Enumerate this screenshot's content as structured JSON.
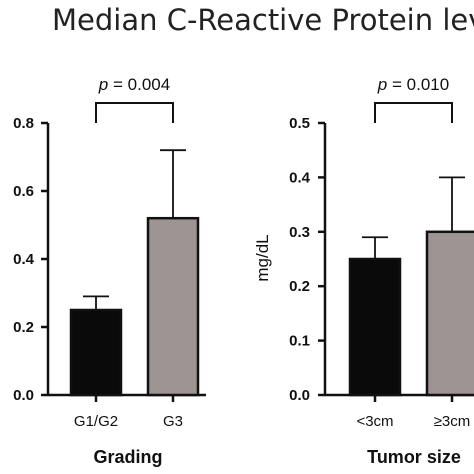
{
  "title": "Median C-Reactive Protein leve",
  "colors": {
    "bar_dark": "#0a0a0a",
    "bar_grey": "#9c9593",
    "stroke": "#111111"
  },
  "chart_data": [
    {
      "type": "bar",
      "categories": [
        "G1/G2",
        "G3"
      ],
      "values": [
        0.25,
        0.52
      ],
      "error_upper": [
        0.29,
        0.72
      ],
      "xlabel": "Grading",
      "ylabel": "",
      "ylim": [
        0,
        0.8
      ],
      "yticks": [
        "0.0",
        "0.2",
        "0.4",
        "0.6",
        "0.8"
      ],
      "annotation": "p = 0.004",
      "bar_colors": [
        "#0a0a0a",
        "#9c9593"
      ]
    },
    {
      "type": "bar",
      "categories": [
        "<3cm",
        "≥3cm"
      ],
      "values": [
        0.25,
        0.3
      ],
      "error_upper": [
        0.29,
        0.4
      ],
      "xlabel": "Tumor size",
      "ylabel": "mg/dL",
      "ylim": [
        0,
        0.5
      ],
      "yticks": [
        "0.0",
        "0.1",
        "0.2",
        "0.3",
        "0.4",
        "0.5"
      ],
      "annotation": "p = 0.010",
      "bar_colors": [
        "#0a0a0a",
        "#9c9593"
      ]
    }
  ]
}
